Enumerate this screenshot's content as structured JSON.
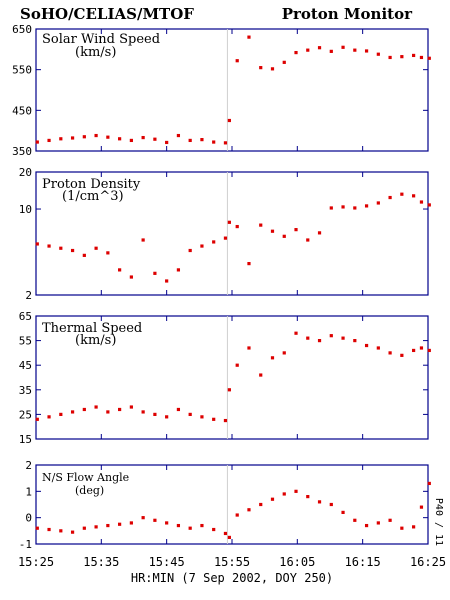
{
  "header": {
    "left_title": "SoHO/CELIAS/MTOF",
    "right_title": "Proton Monitor"
  },
  "side_label": "P40 / 11",
  "colors": {
    "frame": "#00008b",
    "points": "#dd0000",
    "marker_line": "#cfcfcf"
  },
  "chart_data": [
    {
      "type": "scatter",
      "title": "Solar Wind Speed",
      "unit_label": "(km/s)",
      "yscale": "linear",
      "ylim": [
        350,
        650
      ],
      "yticks": [
        350,
        450,
        550,
        650
      ],
      "x": [
        15.42,
        15.45,
        15.48,
        15.51,
        15.54,
        15.57,
        15.6,
        15.63,
        15.66,
        15.69,
        15.72,
        15.75,
        15.78,
        15.81,
        15.84,
        15.87,
        15.9,
        15.91,
        15.93,
        15.96,
        15.99,
        16.02,
        16.05,
        16.08,
        16.11,
        16.14,
        16.17,
        16.2,
        16.23,
        16.26,
        16.29,
        16.32,
        16.35,
        16.38,
        16.4,
        16.42
      ],
      "y": [
        372,
        376,
        380,
        382,
        385,
        388,
        384,
        380,
        376,
        383,
        379,
        371,
        388,
        376,
        378,
        372,
        370,
        425,
        572,
        630,
        555,
        552,
        568,
        592,
        598,
        604,
        595,
        605,
        598,
        596,
        588,
        580,
        582,
        585,
        580,
        578
      ]
    },
    {
      "type": "scatter",
      "title": "Proton Density",
      "unit_label": "(1/cm^3)",
      "yscale": "log",
      "ylim": [
        2,
        20
      ],
      "yticks": [
        2,
        10,
        20
      ],
      "x": [
        15.42,
        15.45,
        15.48,
        15.51,
        15.54,
        15.57,
        15.6,
        15.63,
        15.66,
        15.69,
        15.72,
        15.75,
        15.78,
        15.81,
        15.84,
        15.87,
        15.9,
        15.91,
        15.93,
        15.96,
        15.99,
        16.02,
        16.05,
        16.08,
        16.11,
        16.14,
        16.17,
        16.2,
        16.23,
        16.26,
        16.29,
        16.32,
        16.35,
        16.38,
        16.4,
        16.42
      ],
      "y": [
        5.2,
        5.0,
        4.8,
        4.6,
        4.2,
        4.8,
        4.4,
        3.2,
        2.8,
        5.6,
        3.0,
        2.6,
        3.2,
        4.6,
        5.0,
        5.4,
        5.8,
        7.8,
        7.2,
        3.6,
        7.4,
        6.6,
        6.0,
        6.8,
        5.6,
        6.4,
        10.2,
        10.4,
        10.2,
        10.6,
        11.2,
        12.4,
        13.2,
        12.8,
        11.4,
        10.8
      ]
    },
    {
      "type": "scatter",
      "title": "Thermal Speed",
      "unit_label": "(km/s)",
      "yscale": "linear",
      "ylim": [
        15,
        65
      ],
      "yticks": [
        15,
        25,
        35,
        45,
        55,
        65
      ],
      "x": [
        15.42,
        15.45,
        15.48,
        15.51,
        15.54,
        15.57,
        15.6,
        15.63,
        15.66,
        15.69,
        15.72,
        15.75,
        15.78,
        15.81,
        15.84,
        15.87,
        15.9,
        15.91,
        15.93,
        15.96,
        15.99,
        16.02,
        16.05,
        16.08,
        16.11,
        16.14,
        16.17,
        16.2,
        16.23,
        16.26,
        16.29,
        16.32,
        16.35,
        16.38,
        16.4,
        16.42
      ],
      "y": [
        23,
        24,
        25,
        26,
        27,
        28,
        26,
        27,
        28,
        26,
        25,
        24,
        27,
        25,
        24,
        23,
        22.5,
        35,
        45,
        52,
        41,
        48,
        50,
        58,
        56,
        55,
        57,
        56,
        55,
        53,
        52,
        50,
        49,
        51,
        52,
        51
      ]
    },
    {
      "type": "scatter",
      "title": "N/S Flow Angle",
      "unit_label": "(deg)",
      "yscale": "linear",
      "ylim": [
        -1,
        2
      ],
      "yticks": [
        -1,
        0,
        1,
        2
      ],
      "x": [
        15.42,
        15.45,
        15.48,
        15.51,
        15.54,
        15.57,
        15.6,
        15.63,
        15.66,
        15.69,
        15.72,
        15.75,
        15.78,
        15.81,
        15.84,
        15.87,
        15.9,
        15.91,
        15.93,
        15.96,
        15.99,
        16.02,
        16.05,
        16.08,
        16.11,
        16.14,
        16.17,
        16.2,
        16.23,
        16.26,
        16.29,
        16.32,
        16.35,
        16.38,
        16.4,
        16.42
      ],
      "y": [
        -0.4,
        -0.45,
        -0.5,
        -0.55,
        -0.4,
        -0.35,
        -0.3,
        -0.25,
        -0.2,
        0.0,
        -0.1,
        -0.2,
        -0.3,
        -0.4,
        -0.3,
        -0.45,
        -0.6,
        -0.75,
        0.1,
        0.3,
        0.5,
        0.7,
        0.9,
        1.0,
        0.8,
        0.6,
        0.5,
        0.2,
        -0.1,
        -0.3,
        -0.2,
        -0.1,
        -0.4,
        -0.35,
        0.4,
        1.3
      ]
    }
  ],
  "x_axis": {
    "tick_labels": [
      "15:25",
      "15:35",
      "15:45",
      "15:55",
      "16:05",
      "16:15",
      "16:25"
    ],
    "ticks_decimal_hours": [
      15.4167,
      15.5833,
      15.75,
      15.9167,
      16.0833,
      16.25,
      16.4167
    ],
    "xlim": [
      15.4167,
      16.4167
    ],
    "label": "HR:MIN (7 Sep 2002, DOY 250)"
  }
}
